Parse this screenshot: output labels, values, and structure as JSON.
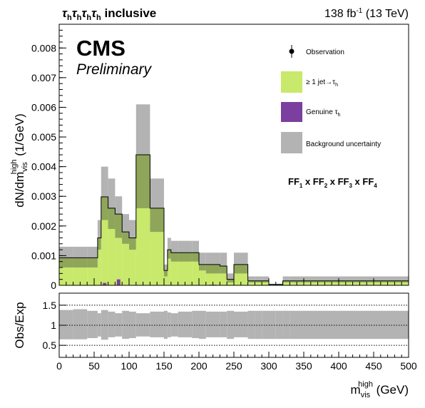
{
  "header": {
    "left_title": "τhτhτhτh inclusive",
    "lumi": "138 fb⁻¹ (13 TeV)"
  },
  "labels": {
    "cms": "CMS",
    "preliminary": "Preliminary",
    "ff_text": "FF1 x FF2 x FF3 x FF4"
  },
  "colors": {
    "fake": "#c8e96b",
    "genuine": "#7b3f9f",
    "uncertainty": "#b3b3b3",
    "overlap": "#8fa65a"
  },
  "chart_data": [
    {
      "type": "bar",
      "panel": "main",
      "xlabel": "m_vis^high (GeV)",
      "ylabel": "dN/dm_vis^high (1/GeV)",
      "xlim": [
        0,
        500
      ],
      "ylim": [
        0,
        0.0088
      ],
      "x_ticks": [
        0,
        50,
        100,
        150,
        200,
        250,
        300,
        350,
        400,
        450,
        500
      ],
      "y_ticks": [
        0,
        0.001,
        0.002,
        0.003,
        0.004,
        0.005,
        0.006,
        0.007,
        0.008
      ],
      "y_tick_labels": [
        "0",
        "0.001",
        "0.002",
        "0.003",
        "0.004",
        "0.005",
        "0.006",
        "0.007",
        "0.008"
      ],
      "bin_edges": [
        0,
        20,
        40,
        55,
        60,
        70,
        80,
        90,
        100,
        110,
        130,
        150,
        155,
        160,
        170,
        190,
        200,
        210,
        230,
        240,
        250,
        270,
        280,
        290,
        300,
        310,
        320,
        330,
        350,
        400,
        450,
        500
      ],
      "legend": [
        {
          "label": "Observation",
          "kind": "marker"
        },
        {
          "label": "≥ 1 jet→τh",
          "kind": "fill",
          "color": "#c8e96b"
        },
        {
          "label": "Genuine τh",
          "kind": "fill",
          "color": "#7b3f9f"
        },
        {
          "label": "Background uncertainty",
          "kind": "fill",
          "color": "#b3b3b3"
        }
      ],
      "series": [
        {
          "name": "≥ 1 jet→τh",
          "values": [
            0.00093,
            0.00093,
            0.00093,
            0.0016,
            0.0029,
            0.0026,
            0.0022,
            0.0018,
            0.0016,
            0.0044,
            0.0026,
            0.0005,
            0.0012,
            0.0011,
            0.0011,
            0.0011,
            0.0007,
            0.00068,
            0.00065,
            0.0002,
            0.0007,
            0.00015,
            0.00015,
            0.00015,
            3e-05,
            3e-05,
            0.00015,
            0.00015,
            0.00015,
            0.00015,
            0.00015
          ]
        },
        {
          "name": "Genuine τh",
          "values": [
            0,
            0,
            0,
            0,
            8e-05,
            0,
            0.0002,
            0,
            0,
            0,
            0,
            0,
            0,
            0,
            0,
            0,
            0,
            2e-05,
            0,
            0,
            0,
            0,
            0,
            0,
            0,
            0,
            0,
            0,
            0,
            0,
            0
          ]
        },
        {
          "name": "Background uncertainty",
          "lower": [
            0.0006,
            0.0006,
            0.0006,
            0.0012,
            0.0022,
            0.0019,
            0.0016,
            0.0014,
            0.0012,
            0.0026,
            0.0018,
            0.0003,
            0.0009,
            0.0008,
            0.0008,
            0.0008,
            0.0005,
            0.0004,
            0.0004,
            0.0001,
            0.0004,
            0.0001,
            0.0001,
            0.0001,
            1e-05,
            1e-05,
            0.0001,
            0.0001,
            0.0001,
            0.0001,
            0.0001
          ],
          "upper": [
            0.0013,
            0.0013,
            0.0013,
            0.0022,
            0.004,
            0.0036,
            0.003,
            0.0024,
            0.0022,
            0.0061,
            0.0036,
            0.0007,
            0.0016,
            0.0015,
            0.0015,
            0.0015,
            0.0011,
            0.0011,
            0.0011,
            0.0004,
            0.0011,
            0.0003,
            0.0003,
            0.0003,
            5e-05,
            5e-05,
            0.0003,
            0.0003,
            0.0003,
            0.0003,
            0.0003
          ]
        }
      ]
    },
    {
      "type": "area",
      "panel": "ratio",
      "xlabel": "m_vis^high (GeV)",
      "ylabel": "Obs/Exp",
      "xlim": [
        0,
        500
      ],
      "ylim": [
        0.2,
        1.8
      ],
      "y_ticks": [
        0.5,
        1,
        1.5
      ],
      "y_tick_labels": [
        "0.5",
        "1",
        "1.5"
      ],
      "reference_lines": [
        0.5,
        1,
        1.5
      ],
      "bin_edges": [
        0,
        20,
        40,
        55,
        60,
        70,
        80,
        90,
        100,
        110,
        130,
        150,
        155,
        160,
        170,
        190,
        200,
        210,
        230,
        240,
        250,
        270,
        280,
        290,
        300,
        310,
        320,
        330,
        350,
        400,
        450,
        500
      ],
      "series": [
        {
          "name": "Background uncertainty",
          "lower": [
            0.65,
            0.65,
            0.68,
            0.72,
            0.64,
            0.7,
            0.72,
            0.66,
            0.68,
            0.72,
            0.7,
            0.66,
            0.7,
            0.72,
            0.7,
            0.68,
            0.66,
            0.7,
            0.7,
            0.66,
            0.7,
            0.66,
            0.66,
            0.66,
            0.66,
            0.66,
            0.66,
            0.66,
            0.66,
            0.66,
            0.66
          ],
          "upper": [
            1.38,
            1.4,
            1.36,
            1.3,
            1.38,
            1.34,
            1.3,
            1.36,
            1.34,
            1.3,
            1.34,
            1.36,
            1.32,
            1.3,
            1.34,
            1.36,
            1.36,
            1.34,
            1.34,
            1.36,
            1.34,
            1.36,
            1.36,
            1.36,
            1.36,
            1.36,
            1.36,
            1.36,
            1.36,
            1.36,
            1.36
          ]
        }
      ]
    }
  ]
}
